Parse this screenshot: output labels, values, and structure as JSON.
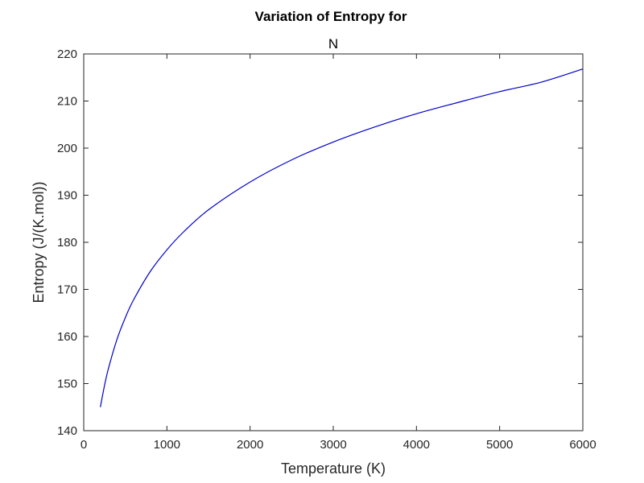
{
  "chart_data": {
    "type": "line",
    "title": "Variation of Entropy for",
    "subtitle": "N",
    "xlabel": "Temperature (K)",
    "ylabel": "Entropy (J/(K.mol))",
    "xlim": [
      0,
      6000
    ],
    "ylim": [
      140,
      220
    ],
    "xticks": [
      0,
      1000,
      2000,
      3000,
      4000,
      5000,
      6000
    ],
    "yticks": [
      140,
      150,
      160,
      170,
      180,
      190,
      200,
      210,
      220
    ],
    "xtick_labels": [
      "0",
      "1000",
      "2000",
      "3000",
      "4000",
      "5000",
      "6000"
    ],
    "ytick_labels": [
      "140",
      "150",
      "160",
      "170",
      "180",
      "190",
      "200",
      "210",
      "220"
    ],
    "grid": false,
    "series": [
      {
        "color": "#0000cc",
        "x": [
          200,
          250,
          300,
          400,
          500,
          600,
          800,
          1000,
          1200,
          1500,
          2000,
          2500,
          3000,
          3500,
          4000,
          4500,
          5000,
          5500,
          6000
        ],
        "y": [
          145.0,
          149.6,
          153.4,
          159.4,
          164.0,
          167.8,
          173.8,
          178.4,
          182.2,
          186.9,
          192.8,
          197.5,
          201.3,
          204.5,
          207.3,
          209.7,
          212.0,
          214.0,
          216.8
        ]
      }
    ]
  }
}
